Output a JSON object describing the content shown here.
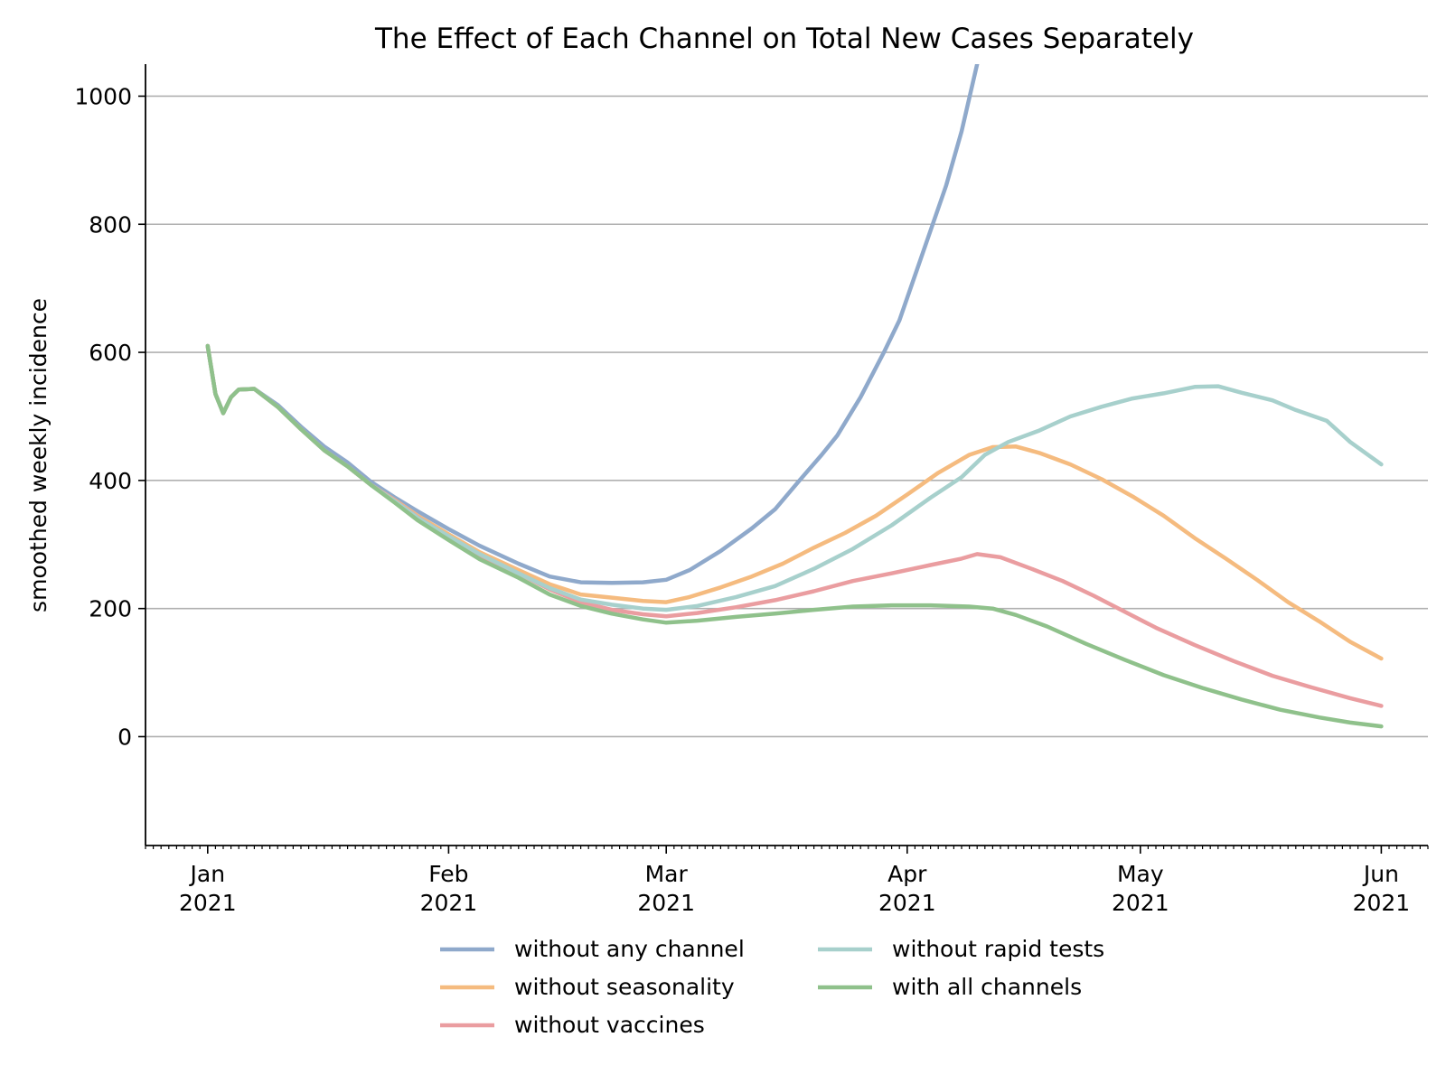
{
  "chart_data": {
    "type": "line",
    "title": "The Effect of Each Channel on Total New Cases Separately",
    "xlabel": "",
    "ylabel": "smoothed weekly incidence",
    "ylim": [
      -170,
      1050
    ],
    "xlim": [
      "2020-12-24",
      "2021-06-07"
    ],
    "yticks": [
      0,
      200,
      400,
      600,
      800,
      1000
    ],
    "xticks": [
      {
        "date": "2021-01-01",
        "label": [
          "Jan",
          "2021"
        ]
      },
      {
        "date": "2021-02-01",
        "label": [
          "Feb",
          "2021"
        ]
      },
      {
        "date": "2021-03-01",
        "label": [
          "Mar",
          "2021"
        ]
      },
      {
        "date": "2021-04-01",
        "label": [
          "Apr",
          "2021"
        ]
      },
      {
        "date": "2021-05-01",
        "label": [
          "May",
          "2021"
        ]
      },
      {
        "date": "2021-06-01",
        "label": [
          "Jun",
          "2021"
        ]
      }
    ],
    "grid": "horizontal",
    "legend_position": "bottom",
    "series": [
      {
        "name": "without any channel",
        "color": "#8fa9cb",
        "points": [
          [
            "2021-01-01",
            610
          ],
          [
            "2021-01-02",
            535
          ],
          [
            "2021-01-03",
            505
          ],
          [
            "2021-01-04",
            530
          ],
          [
            "2021-01-05",
            542
          ],
          [
            "2021-01-07",
            543
          ],
          [
            "2021-01-10",
            518
          ],
          [
            "2021-01-13",
            484
          ],
          [
            "2021-01-16",
            453
          ],
          [
            "2021-01-19",
            428
          ],
          [
            "2021-01-22",
            398
          ],
          [
            "2021-01-25",
            374
          ],
          [
            "2021-01-28",
            352
          ],
          [
            "2021-02-01",
            324
          ],
          [
            "2021-02-05",
            298
          ],
          [
            "2021-02-10",
            270
          ],
          [
            "2021-02-14",
            250
          ],
          [
            "2021-02-18",
            241
          ],
          [
            "2021-02-22",
            240
          ],
          [
            "2021-02-26",
            241
          ],
          [
            "2021-03-01",
            245
          ],
          [
            "2021-03-04",
            260
          ],
          [
            "2021-03-08",
            290
          ],
          [
            "2021-03-12",
            325
          ],
          [
            "2021-03-15",
            355
          ],
          [
            "2021-03-18",
            398
          ],
          [
            "2021-03-21",
            440
          ],
          [
            "2021-03-23",
            470
          ],
          [
            "2021-03-26",
            530
          ],
          [
            "2021-03-29",
            600
          ],
          [
            "2021-03-31",
            650
          ],
          [
            "2021-04-02",
            720
          ],
          [
            "2021-04-04",
            790
          ],
          [
            "2021-04-06",
            860
          ],
          [
            "2021-04-08",
            945
          ],
          [
            "2021-04-10",
            1050
          ]
        ]
      },
      {
        "name": "without seasonality",
        "color": "#f5bb7f",
        "points": [
          [
            "2021-01-01",
            610
          ],
          [
            "2021-01-02",
            535
          ],
          [
            "2021-01-03",
            505
          ],
          [
            "2021-01-04",
            530
          ],
          [
            "2021-01-05",
            542
          ],
          [
            "2021-01-07",
            543
          ],
          [
            "2021-01-10",
            515
          ],
          [
            "2021-01-13",
            480
          ],
          [
            "2021-01-16",
            447
          ],
          [
            "2021-01-19",
            422
          ],
          [
            "2021-01-22",
            393
          ],
          [
            "2021-01-25",
            370
          ],
          [
            "2021-01-28",
            345
          ],
          [
            "2021-02-01",
            316
          ],
          [
            "2021-02-05",
            288
          ],
          [
            "2021-02-10",
            260
          ],
          [
            "2021-02-14",
            238
          ],
          [
            "2021-02-18",
            222
          ],
          [
            "2021-02-22",
            217
          ],
          [
            "2021-02-26",
            212
          ],
          [
            "2021-03-01",
            210
          ],
          [
            "2021-03-04",
            218
          ],
          [
            "2021-03-08",
            233
          ],
          [
            "2021-03-12",
            250
          ],
          [
            "2021-03-16",
            270
          ],
          [
            "2021-03-20",
            295
          ],
          [
            "2021-03-24",
            318
          ],
          [
            "2021-03-28",
            345
          ],
          [
            "2021-04-01",
            378
          ],
          [
            "2021-04-05",
            412
          ],
          [
            "2021-04-09",
            440
          ],
          [
            "2021-04-12",
            452
          ],
          [
            "2021-04-15",
            453
          ],
          [
            "2021-04-18",
            443
          ],
          [
            "2021-04-22",
            425
          ],
          [
            "2021-04-26",
            402
          ],
          [
            "2021-04-30",
            375
          ],
          [
            "2021-05-04",
            345
          ],
          [
            "2021-05-08",
            310
          ],
          [
            "2021-05-12",
            278
          ],
          [
            "2021-05-16",
            245
          ],
          [
            "2021-05-20",
            210
          ],
          [
            "2021-05-24",
            180
          ],
          [
            "2021-05-28",
            148
          ],
          [
            "2021-06-01",
            122
          ]
        ]
      },
      {
        "name": "without vaccines",
        "color": "#ea9da0",
        "points": [
          [
            "2021-01-01",
            610
          ],
          [
            "2021-01-02",
            535
          ],
          [
            "2021-01-03",
            505
          ],
          [
            "2021-01-04",
            530
          ],
          [
            "2021-01-05",
            542
          ],
          [
            "2021-01-07",
            543
          ],
          [
            "2021-01-10",
            515
          ],
          [
            "2021-01-13",
            480
          ],
          [
            "2021-01-16",
            447
          ],
          [
            "2021-01-19",
            422
          ],
          [
            "2021-01-22",
            393
          ],
          [
            "2021-01-25",
            369
          ],
          [
            "2021-01-28",
            343
          ],
          [
            "2021-02-01",
            312
          ],
          [
            "2021-02-05",
            283
          ],
          [
            "2021-02-10",
            255
          ],
          [
            "2021-02-14",
            230
          ],
          [
            "2021-02-18",
            210
          ],
          [
            "2021-02-22",
            198
          ],
          [
            "2021-02-26",
            191
          ],
          [
            "2021-03-01",
            188
          ],
          [
            "2021-03-05",
            193
          ],
          [
            "2021-03-10",
            202
          ],
          [
            "2021-03-15",
            213
          ],
          [
            "2021-03-20",
            227
          ],
          [
            "2021-03-25",
            243
          ],
          [
            "2021-03-30",
            255
          ],
          [
            "2021-04-04",
            268
          ],
          [
            "2021-04-08",
            278
          ],
          [
            "2021-04-10",
            285
          ],
          [
            "2021-04-13",
            280
          ],
          [
            "2021-04-17",
            262
          ],
          [
            "2021-04-21",
            243
          ],
          [
            "2021-04-25",
            220
          ],
          [
            "2021-04-29",
            195
          ],
          [
            "2021-05-03",
            170
          ],
          [
            "2021-05-08",
            143
          ],
          [
            "2021-05-13",
            118
          ],
          [
            "2021-05-18",
            95
          ],
          [
            "2021-05-23",
            77
          ],
          [
            "2021-05-28",
            60
          ],
          [
            "2021-06-01",
            48
          ]
        ]
      },
      {
        "name": "without rapid tests",
        "color": "#a7d0cc",
        "points": [
          [
            "2021-01-01",
            610
          ],
          [
            "2021-01-02",
            535
          ],
          [
            "2021-01-03",
            505
          ],
          [
            "2021-01-04",
            530
          ],
          [
            "2021-01-05",
            542
          ],
          [
            "2021-01-07",
            543
          ],
          [
            "2021-01-10",
            515
          ],
          [
            "2021-01-13",
            480
          ],
          [
            "2021-01-16",
            447
          ],
          [
            "2021-01-19",
            422
          ],
          [
            "2021-01-22",
            393
          ],
          [
            "2021-01-25",
            368
          ],
          [
            "2021-01-28",
            342
          ],
          [
            "2021-02-01",
            313
          ],
          [
            "2021-02-05",
            285
          ],
          [
            "2021-02-10",
            255
          ],
          [
            "2021-02-14",
            232
          ],
          [
            "2021-02-18",
            214
          ],
          [
            "2021-02-22",
            206
          ],
          [
            "2021-02-26",
            200
          ],
          [
            "2021-03-01",
            198
          ],
          [
            "2021-03-05",
            204
          ],
          [
            "2021-03-10",
            218
          ],
          [
            "2021-03-15",
            235
          ],
          [
            "2021-03-20",
            262
          ],
          [
            "2021-03-25",
            293
          ],
          [
            "2021-03-30",
            330
          ],
          [
            "2021-04-04",
            373
          ],
          [
            "2021-04-08",
            405
          ],
          [
            "2021-04-11",
            440
          ],
          [
            "2021-04-14",
            460
          ],
          [
            "2021-04-18",
            478
          ],
          [
            "2021-04-22",
            500
          ],
          [
            "2021-04-26",
            515
          ],
          [
            "2021-04-30",
            528
          ],
          [
            "2021-05-04",
            536
          ],
          [
            "2021-05-08",
            546
          ],
          [
            "2021-05-11",
            547
          ],
          [
            "2021-05-14",
            537
          ],
          [
            "2021-05-18",
            525
          ],
          [
            "2021-05-21",
            510
          ],
          [
            "2021-05-25",
            493
          ],
          [
            "2021-05-28",
            460
          ],
          [
            "2021-06-01",
            425
          ]
        ]
      },
      {
        "name": "with all channels",
        "color": "#8fc18b",
        "points": [
          [
            "2021-01-01",
            610
          ],
          [
            "2021-01-02",
            535
          ],
          [
            "2021-01-03",
            505
          ],
          [
            "2021-01-04",
            530
          ],
          [
            "2021-01-05",
            542
          ],
          [
            "2021-01-07",
            543
          ],
          [
            "2021-01-10",
            515
          ],
          [
            "2021-01-13",
            480
          ],
          [
            "2021-01-16",
            447
          ],
          [
            "2021-01-19",
            422
          ],
          [
            "2021-01-22",
            393
          ],
          [
            "2021-01-25",
            366
          ],
          [
            "2021-01-28",
            338
          ],
          [
            "2021-02-01",
            307
          ],
          [
            "2021-02-05",
            277
          ],
          [
            "2021-02-10",
            248
          ],
          [
            "2021-02-14",
            222
          ],
          [
            "2021-02-18",
            204
          ],
          [
            "2021-02-22",
            192
          ],
          [
            "2021-02-26",
            183
          ],
          [
            "2021-03-01",
            178
          ],
          [
            "2021-03-05",
            181
          ],
          [
            "2021-03-10",
            187
          ],
          [
            "2021-03-15",
            192
          ],
          [
            "2021-03-20",
            198
          ],
          [
            "2021-03-25",
            203
          ],
          [
            "2021-03-30",
            205
          ],
          [
            "2021-04-04",
            205
          ],
          [
            "2021-04-09",
            203
          ],
          [
            "2021-04-12",
            200
          ],
          [
            "2021-04-15",
            190
          ],
          [
            "2021-04-19",
            172
          ],
          [
            "2021-04-24",
            145
          ],
          [
            "2021-04-29",
            120
          ],
          [
            "2021-05-04",
            96
          ],
          [
            "2021-05-09",
            76
          ],
          [
            "2021-05-14",
            58
          ],
          [
            "2021-05-19",
            42
          ],
          [
            "2021-05-24",
            30
          ],
          [
            "2021-05-28",
            22
          ],
          [
            "2021-06-01",
            16
          ]
        ]
      }
    ]
  }
}
